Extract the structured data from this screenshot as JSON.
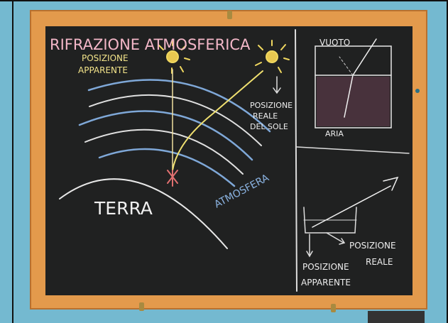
{
  "board": {
    "title": "RIFRAZIONE ATMOSFERICA",
    "apparent_position": [
      "POSIZIONE",
      "APPARENTE"
    ],
    "real_position_sun": [
      "POSIZIONE",
      "REALE",
      "DEL SOLE"
    ],
    "earth": "TERRA",
    "atmosphere": "ATMOSFERA",
    "vacuum": "VUOTO",
    "air": "ARIA",
    "real_position": [
      "POSIZIONE",
      "REALE"
    ],
    "apparent_position_bottom": [
      "POSIZIONE",
      "APPARENTE"
    ]
  }
}
